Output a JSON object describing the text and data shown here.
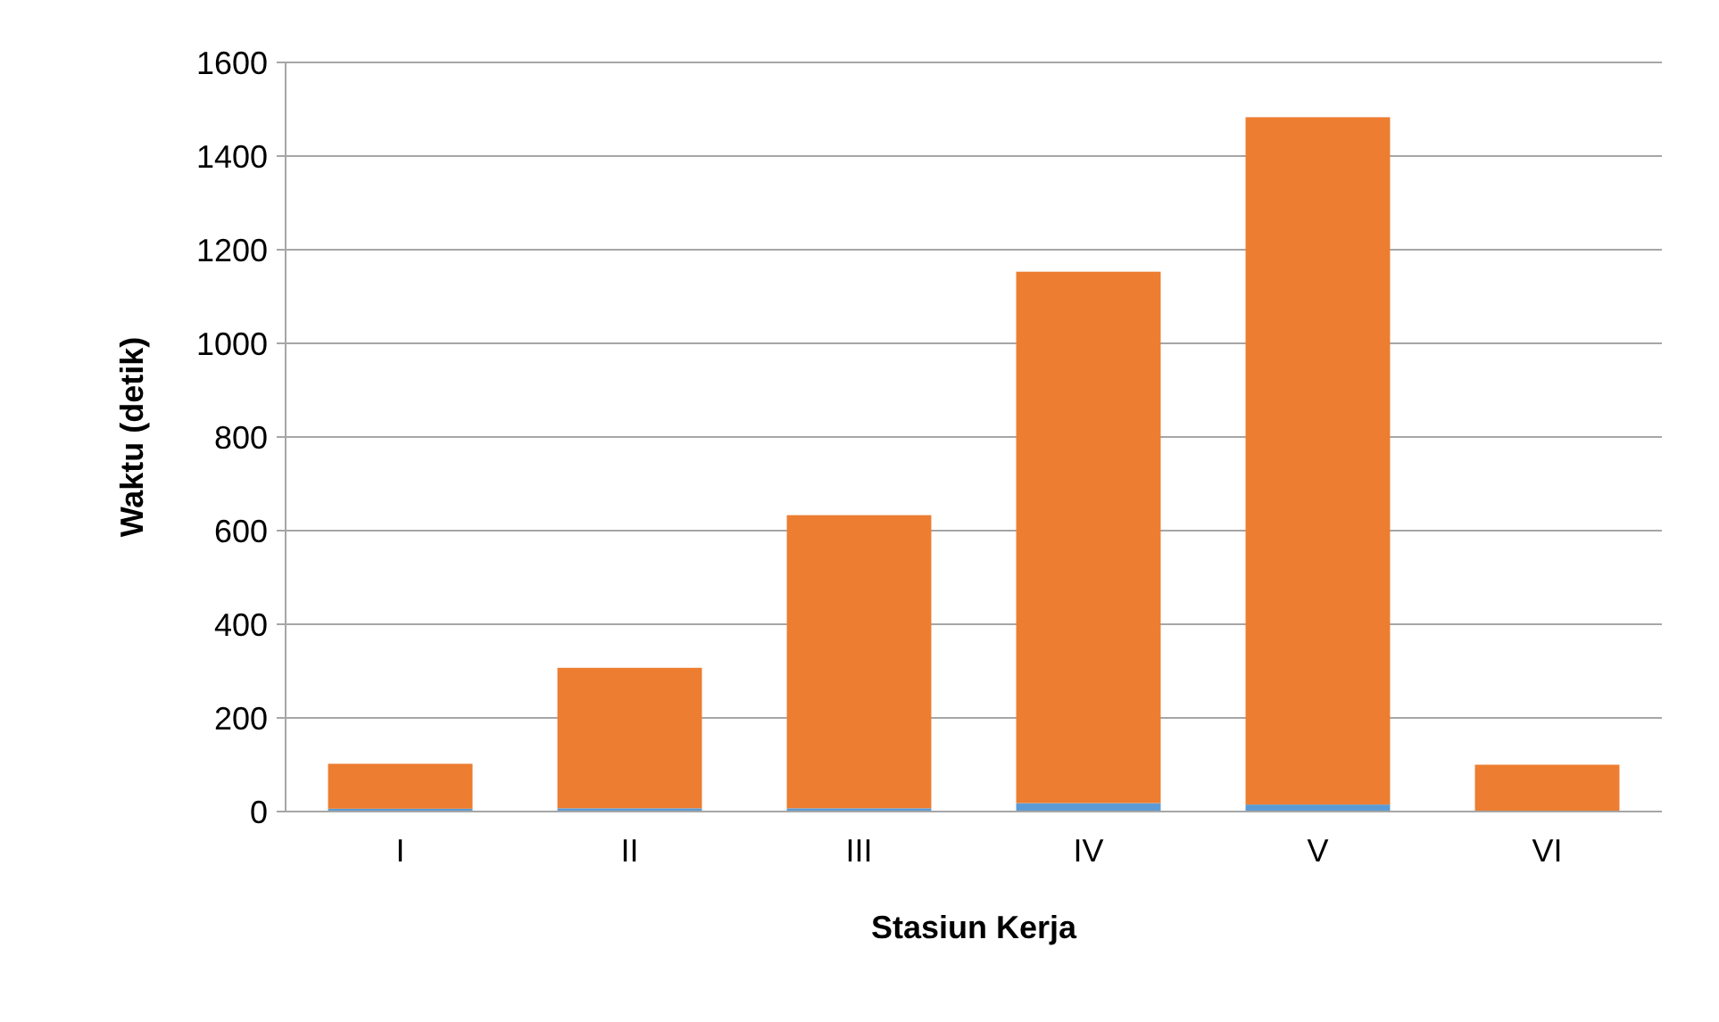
{
  "chart_data": {
    "type": "bar",
    "xlabel": "Stasiun Kerja",
    "ylabel": "Waktu (detik)",
    "categories": [
      "I",
      "II",
      "III",
      "IV",
      "V",
      "VI"
    ],
    "stacked": true,
    "series": [
      {
        "color": "#5b9bd5",
        "values": [
          6,
          7,
          7,
          18,
          15,
          0
        ]
      },
      {
        "color": "#ed7d31",
        "values": [
          96,
          300,
          626,
          1135,
          1468,
          100
        ]
      }
    ],
    "ylim": [
      0,
      1600
    ],
    "yticks": [
      0,
      200,
      400,
      600,
      800,
      1000,
      1200,
      1400,
      1600
    ],
    "grid": "y"
  }
}
